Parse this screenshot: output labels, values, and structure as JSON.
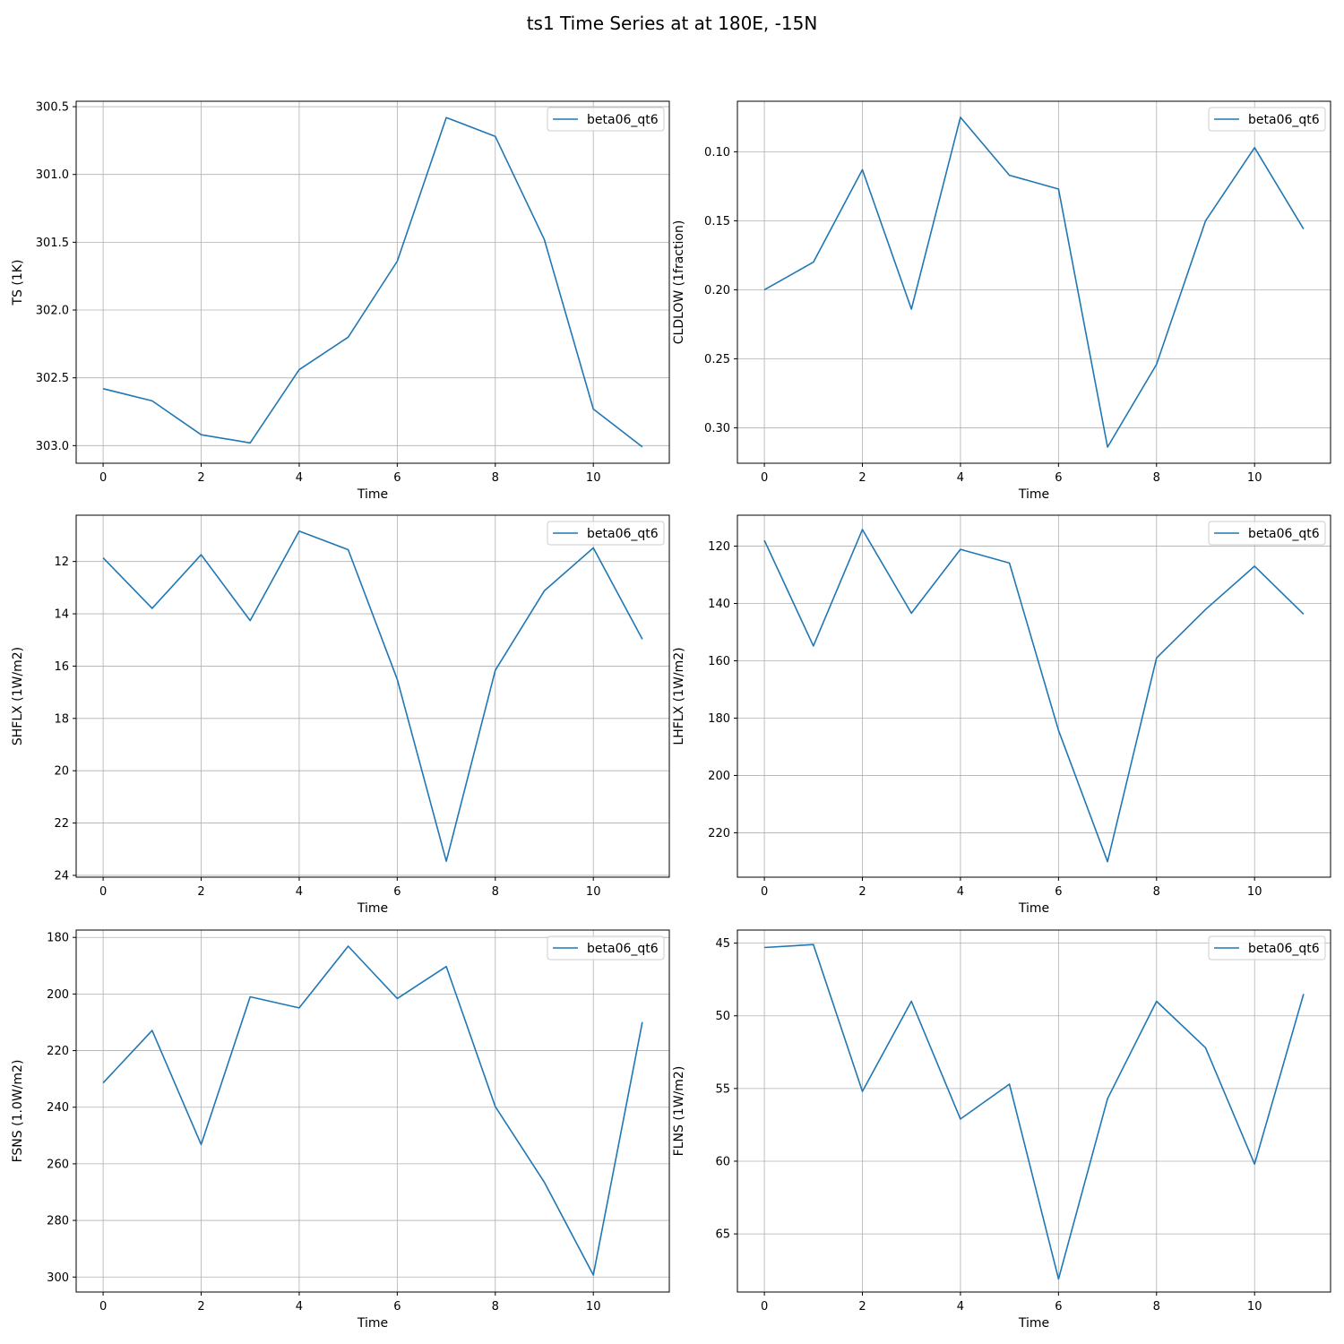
{
  "figure": {
    "title": "ts1 Time Series at at 180E, -15N"
  },
  "style": {
    "line_color": "#1f77b4",
    "grid_color": "#b0b0b0",
    "axis_color": "#000000"
  },
  "chart_data": [
    {
      "type": "line",
      "xlabel": "Time",
      "ylabel": "TS (1K)",
      "y_inverted": true,
      "xlim": [
        -0.55,
        11.55
      ],
      "ylim": [
        303.13,
        300.46
      ],
      "xticks": [
        0,
        2,
        4,
        6,
        8,
        10
      ],
      "xtick_labels": [
        "0",
        "2",
        "4",
        "6",
        "8",
        "10"
      ],
      "yticks": [
        300.5,
        301.0,
        301.5,
        302.0,
        302.5,
        303.0
      ],
      "ytick_labels": [
        "300.5",
        "301.0",
        "301.5",
        "302.0",
        "302.5",
        "303.0"
      ],
      "grid": true,
      "legend_position": "upper right",
      "series": [
        {
          "name": "beta06_qt6",
          "x": [
            0,
            1,
            2,
            3,
            4,
            5,
            6,
            7,
            8,
            9,
            10,
            11
          ],
          "values": [
            302.58,
            302.67,
            302.92,
            302.98,
            302.44,
            302.2,
            301.64,
            300.58,
            300.72,
            301.48,
            302.73,
            303.01
          ]
        }
      ]
    },
    {
      "type": "line",
      "xlabel": "Time",
      "ylabel": "CLDLOW (1fraction)",
      "y_inverted": true,
      "xlim": [
        -0.55,
        11.55
      ],
      "ylim": [
        0.3257,
        0.0634
      ],
      "xticks": [
        0,
        2,
        4,
        6,
        8,
        10
      ],
      "xtick_labels": [
        "0",
        "2",
        "4",
        "6",
        "8",
        "10"
      ],
      "yticks": [
        0.1,
        0.15,
        0.2,
        0.25,
        0.3
      ],
      "ytick_labels": [
        "0.10",
        "0.15",
        "0.20",
        "0.25",
        "0.30"
      ],
      "grid": true,
      "legend_position": "upper right",
      "series": [
        {
          "name": "beta06_qt6",
          "x": [
            0,
            1,
            2,
            3,
            4,
            5,
            6,
            7,
            8,
            9,
            10,
            11
          ],
          "values": [
            0.2,
            0.18,
            0.113,
            0.214,
            0.075,
            0.117,
            0.127,
            0.314,
            0.254,
            0.15,
            0.097,
            0.156
          ]
        }
      ]
    },
    {
      "type": "line",
      "xlabel": "Time",
      "ylabel": "SHFLX (1W/m2)",
      "y_inverted": true,
      "xlim": [
        -0.55,
        11.55
      ],
      "ylim": [
        24.07,
        10.23
      ],
      "xticks": [
        0,
        2,
        4,
        6,
        8,
        10
      ],
      "xtick_labels": [
        "0",
        "2",
        "4",
        "6",
        "8",
        "10"
      ],
      "yticks": [
        12,
        14,
        16,
        18,
        20,
        22,
        24
      ],
      "ytick_labels": [
        "12",
        "14",
        "16",
        "18",
        "20",
        "22",
        "24"
      ],
      "grid": true,
      "legend_position": "upper right",
      "series": [
        {
          "name": "beta06_qt6",
          "x": [
            0,
            1,
            2,
            3,
            4,
            5,
            6,
            7,
            8,
            9,
            10,
            11
          ],
          "values": [
            11.86,
            13.79,
            11.74,
            14.26,
            10.84,
            11.55,
            16.51,
            23.46,
            16.16,
            13.12,
            11.48,
            14.97
          ]
        }
      ]
    },
    {
      "type": "line",
      "xlabel": "Time",
      "ylabel": "LHFLX (1W/m2)",
      "y_inverted": true,
      "xlim": [
        -0.55,
        11.55
      ],
      "ylim": [
        235.5,
        109.2
      ],
      "xticks": [
        0,
        2,
        4,
        6,
        8,
        10
      ],
      "xtick_labels": [
        "0",
        "2",
        "4",
        "6",
        "8",
        "10"
      ],
      "yticks": [
        120,
        140,
        160,
        180,
        200,
        220
      ],
      "ytick_labels": [
        "120",
        "140",
        "160",
        "180",
        "200",
        "220"
      ],
      "grid": true,
      "legend_position": "upper right",
      "series": [
        {
          "name": "beta06_qt6",
          "x": [
            0,
            1,
            2,
            3,
            4,
            5,
            6,
            7,
            8,
            9,
            10,
            11
          ],
          "values": [
            118.0,
            154.8,
            114.2,
            143.4,
            121.1,
            125.9,
            184.3,
            230.1,
            159.0,
            142.1,
            127.0,
            143.7
          ]
        }
      ]
    },
    {
      "type": "line",
      "xlabel": "Time",
      "ylabel": "FSNS (1.0W/m2)",
      "y_inverted": true,
      "xlim": [
        -0.55,
        11.55
      ],
      "ylim": [
        305.3,
        177.4
      ],
      "xticks": [
        0,
        2,
        4,
        6,
        8,
        10
      ],
      "xtick_labels": [
        "0",
        "2",
        "4",
        "6",
        "8",
        "10"
      ],
      "yticks": [
        180,
        200,
        220,
        240,
        260,
        280,
        300
      ],
      "ytick_labels": [
        "180",
        "200",
        "220",
        "240",
        "260",
        "280",
        "300"
      ],
      "grid": true,
      "legend_position": "upper right",
      "series": [
        {
          "name": "beta06_qt6",
          "x": [
            0,
            1,
            2,
            3,
            4,
            5,
            6,
            7,
            8,
            9,
            10,
            11
          ],
          "values": [
            231.4,
            212.9,
            253.2,
            201.0,
            204.9,
            183.1,
            201.6,
            190.3,
            239.8,
            266.5,
            299.3,
            209.9
          ]
        }
      ]
    },
    {
      "type": "line",
      "xlabel": "Time",
      "ylabel": "FLNS (1W/m2)",
      "y_inverted": true,
      "xlim": [
        -0.55,
        11.55
      ],
      "ylim": [
        69.0,
        44.1
      ],
      "xticks": [
        0,
        2,
        4,
        6,
        8,
        10
      ],
      "xtick_labels": [
        "0",
        "2",
        "4",
        "6",
        "8",
        "10"
      ],
      "yticks": [
        45,
        50,
        55,
        60,
        65
      ],
      "ytick_labels": [
        "45",
        "50",
        "55",
        "60",
        "65"
      ],
      "grid": true,
      "legend_position": "upper right",
      "series": [
        {
          "name": "beta06_qt6",
          "x": [
            0,
            1,
            2,
            3,
            4,
            5,
            6,
            7,
            8,
            9,
            10,
            11
          ],
          "values": [
            45.3,
            45.1,
            55.2,
            49.0,
            57.1,
            54.7,
            68.1,
            55.7,
            49.0,
            52.2,
            60.2,
            48.5
          ]
        }
      ]
    }
  ]
}
